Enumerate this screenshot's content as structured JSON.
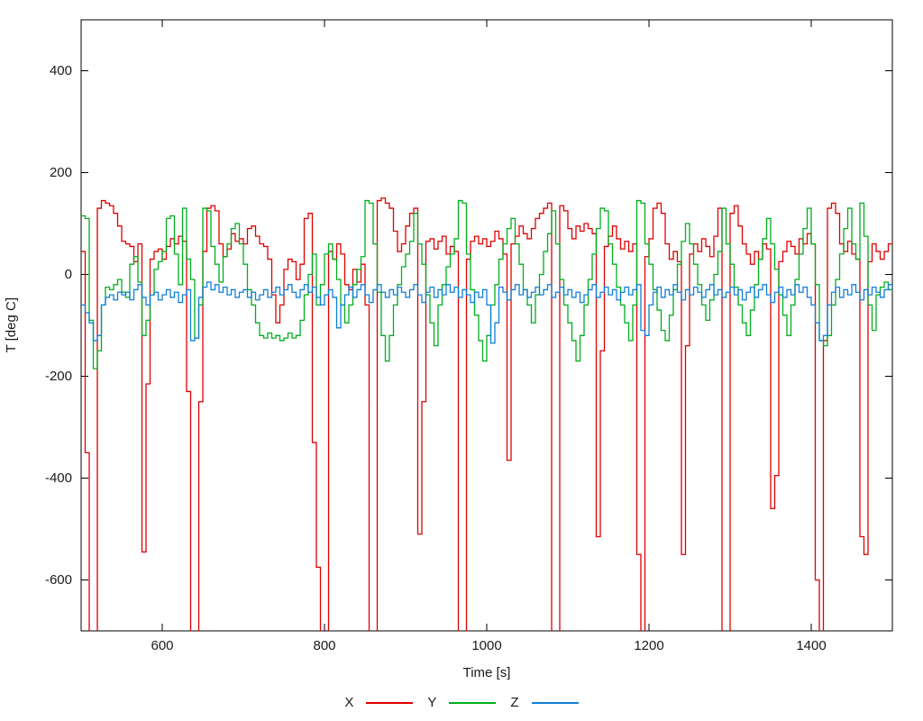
{
  "chart_data": {
    "type": "line",
    "line_style": "steps",
    "title": "",
    "xlabel": "Time [s]",
    "ylabel": "T [deg C]",
    "xlim": [
      500,
      1500
    ],
    "ylim": [
      -700,
      500
    ],
    "xticks": [
      600,
      800,
      1000,
      1200,
      1400
    ],
    "yticks": [
      400,
      200,
      0,
      -200,
      -400,
      -600
    ],
    "grid": false,
    "border_color": "#000000",
    "legend_position": "bottom-center",
    "x_start": 500,
    "x_step": 5,
    "series": [
      {
        "name": "X",
        "color": "#e00000",
        "values": [
          45,
          -350,
          -720,
          -720,
          130,
          145,
          140,
          135,
          120,
          95,
          65,
          60,
          55,
          25,
          60,
          -545,
          -215,
          30,
          45,
          50,
          30,
          55,
          70,
          60,
          75,
          65,
          -230,
          -720,
          -720,
          -250,
          45,
          130,
          135,
          125,
          60,
          35,
          50,
          80,
          65,
          70,
          60,
          90,
          95,
          75,
          60,
          55,
          30,
          -40,
          -95,
          -60,
          10,
          30,
          25,
          -10,
          20,
          110,
          120,
          -330,
          -575,
          -720,
          -720,
          45,
          30,
          60,
          40,
          -20,
          -30,
          10,
          -15,
          20,
          -60,
          -720,
          -720,
          145,
          150,
          140,
          130,
          85,
          45,
          60,
          95,
          120,
          130,
          -510,
          -250,
          65,
          70,
          50,
          65,
          75,
          40,
          55,
          45,
          -720,
          -720,
          30,
          65,
          75,
          60,
          70,
          55,
          65,
          85,
          70,
          40,
          -365,
          60,
          75,
          95,
          80,
          70,
          90,
          110,
          120,
          130,
          140,
          -720,
          -720,
          135,
          125,
          90,
          70,
          95,
          85,
          100,
          90,
          80,
          -515,
          -150,
          55,
          75,
          95,
          70,
          50,
          65,
          45,
          60,
          -550,
          -720,
          35,
          70,
          130,
          140,
          120,
          60,
          30,
          45,
          25,
          -550,
          -140,
          40,
          60,
          45,
          70,
          55,
          35,
          75,
          130,
          -720,
          -720,
          120,
          135,
          95,
          60,
          40,
          20,
          45,
          30,
          60,
          50,
          -460,
          -395,
          25,
          45,
          65,
          55,
          40,
          70,
          60,
          80,
          60,
          -600,
          -720,
          -130,
          130,
          140,
          120,
          60,
          45,
          65,
          40,
          30,
          -515,
          -550,
          25,
          60,
          45,
          30,
          45,
          60,
          65
        ]
      },
      {
        "name": "Y",
        "color": "#00ae1e",
        "values": [
          115,
          110,
          -90,
          -185,
          -150,
          -60,
          -25,
          -30,
          -20,
          -10,
          -35,
          -45,
          20,
          35,
          -15,
          -120,
          -90,
          -40,
          10,
          25,
          45,
          110,
          115,
          40,
          -20,
          130,
          30,
          -10,
          -125,
          -60,
          130,
          125,
          55,
          20,
          -15,
          35,
          60,
          90,
          100,
          60,
          20,
          -30,
          -60,
          -95,
          -120,
          -125,
          -115,
          -125,
          -120,
          -130,
          -125,
          -115,
          -125,
          -120,
          -90,
          -40,
          0,
          40,
          -60,
          -20,
          40,
          60,
          30,
          -10,
          -60,
          -95,
          -60,
          -20,
          10,
          35,
          145,
          140,
          60,
          -35,
          -120,
          -170,
          -120,
          -60,
          -20,
          15,
          40,
          65,
          120,
          60,
          20,
          -40,
          -95,
          -140,
          -60,
          -20,
          15,
          40,
          70,
          145,
          140,
          40,
          -30,
          -80,
          -130,
          -170,
          -120,
          -60,
          -20,
          30,
          60,
          90,
          110,
          60,
          20,
          -30,
          -60,
          -95,
          -40,
          0,
          45,
          80,
          125,
          60,
          -10,
          -60,
          -95,
          -130,
          -170,
          -120,
          -60,
          -10,
          40,
          90,
          130,
          125,
          60,
          20,
          -25,
          -60,
          -95,
          -130,
          -60,
          145,
          140,
          60,
          20,
          -30,
          -70,
          -110,
          -130,
          -80,
          -30,
          20,
          65,
          100,
          60,
          20,
          -20,
          -60,
          -90,
          -50,
          0,
          45,
          130,
          60,
          20,
          -25,
          -60,
          -95,
          -120,
          -70,
          -20,
          30,
          70,
          110,
          60,
          10,
          -40,
          -80,
          -120,
          -60,
          -10,
          40,
          90,
          130,
          60,
          -20,
          -130,
          -140,
          -120,
          -60,
          -10,
          40,
          90,
          130,
          60,
          30,
          140,
          75,
          -60,
          -110,
          -40,
          -25,
          -15,
          -30,
          -20
        ]
      },
      {
        "name": "Z",
        "color": "#0f7fd8",
        "values": [
          -60,
          -75,
          -95,
          -130,
          -120,
          -60,
          -45,
          -40,
          -50,
          -35,
          -40,
          -35,
          -50,
          -30,
          -20,
          -45,
          -60,
          -40,
          -35,
          -50,
          -40,
          -30,
          -45,
          -35,
          -55,
          -40,
          -30,
          -130,
          -125,
          -45,
          -25,
          -15,
          -30,
          -20,
          -35,
          -25,
          -40,
          -30,
          -45,
          -35,
          -30,
          -45,
          -35,
          -50,
          -40,
          -30,
          -45,
          -35,
          -25,
          -40,
          -30,
          -20,
          -35,
          -45,
          -30,
          -20,
          -35,
          -25,
          -45,
          -60,
          -40,
          -30,
          -45,
          -105,
          -60,
          -40,
          -25,
          -45,
          -30,
          -20,
          -40,
          -55,
          -30,
          -20,
          -35,
          -45,
          -30,
          -40,
          -25,
          -35,
          -45,
          -30,
          -20,
          -40,
          -55,
          -35,
          -25,
          -45,
          -30,
          -40,
          -20,
          -35,
          -25,
          -45,
          -30,
          -40,
          -55,
          -35,
          -45,
          -30,
          -60,
          -135,
          -95,
          -25,
          -35,
          -50,
          -30,
          -20,
          -40,
          -30,
          -45,
          -35,
          -25,
          -40,
          -30,
          -20,
          -45,
          -35,
          -25,
          -40,
          -30,
          -45,
          -35,
          -55,
          -40,
          -30,
          -20,
          -45,
          -35,
          -25,
          -40,
          -30,
          -50,
          -35,
          -25,
          -40,
          -30,
          -20,
          -110,
          -120,
          -60,
          -35,
          -25,
          -45,
          -30,
          -40,
          -20,
          -35,
          -50,
          -30,
          -40,
          -25,
          -35,
          -45,
          -30,
          -20,
          -40,
          -30,
          -45,
          -35,
          -25,
          -40,
          -30,
          -50,
          -35,
          -25,
          -45,
          -30,
          -20,
          -40,
          -55,
          -35,
          -25,
          -45,
          -30,
          -40,
          -20,
          -35,
          -25,
          -45,
          -60,
          -95,
          -130,
          -120,
          -60,
          -35,
          -25,
          -45,
          -30,
          -40,
          -20,
          -35,
          -50,
          -30,
          -40,
          -25,
          -35,
          -45,
          -30,
          -20,
          -35
        ]
      }
    ]
  }
}
